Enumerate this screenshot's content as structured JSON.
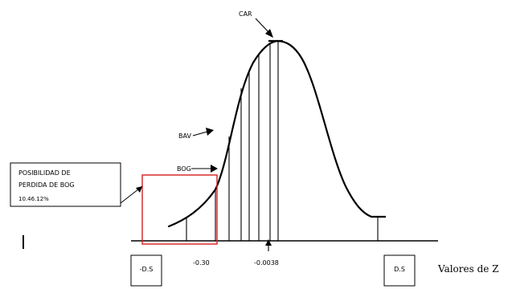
{
  "annotations": {
    "car": "CAR",
    "bav": "BAV",
    "bog": "BOG",
    "risk_box": [
      "POSIBILIDAD DE",
      "PERDIDA DE BOG",
      "10.46.12%"
    ]
  },
  "axis": {
    "tick_minus_030": "-0.30",
    "tick_minus_00038": "-0.0038",
    "box_left": "-D.S",
    "box_right": "D.S",
    "axis_title": "Valores de Z"
  },
  "colors": {
    "ink": "#000000",
    "risk_box_stroke": "#d62020",
    "background": "#ffffff"
  }
}
